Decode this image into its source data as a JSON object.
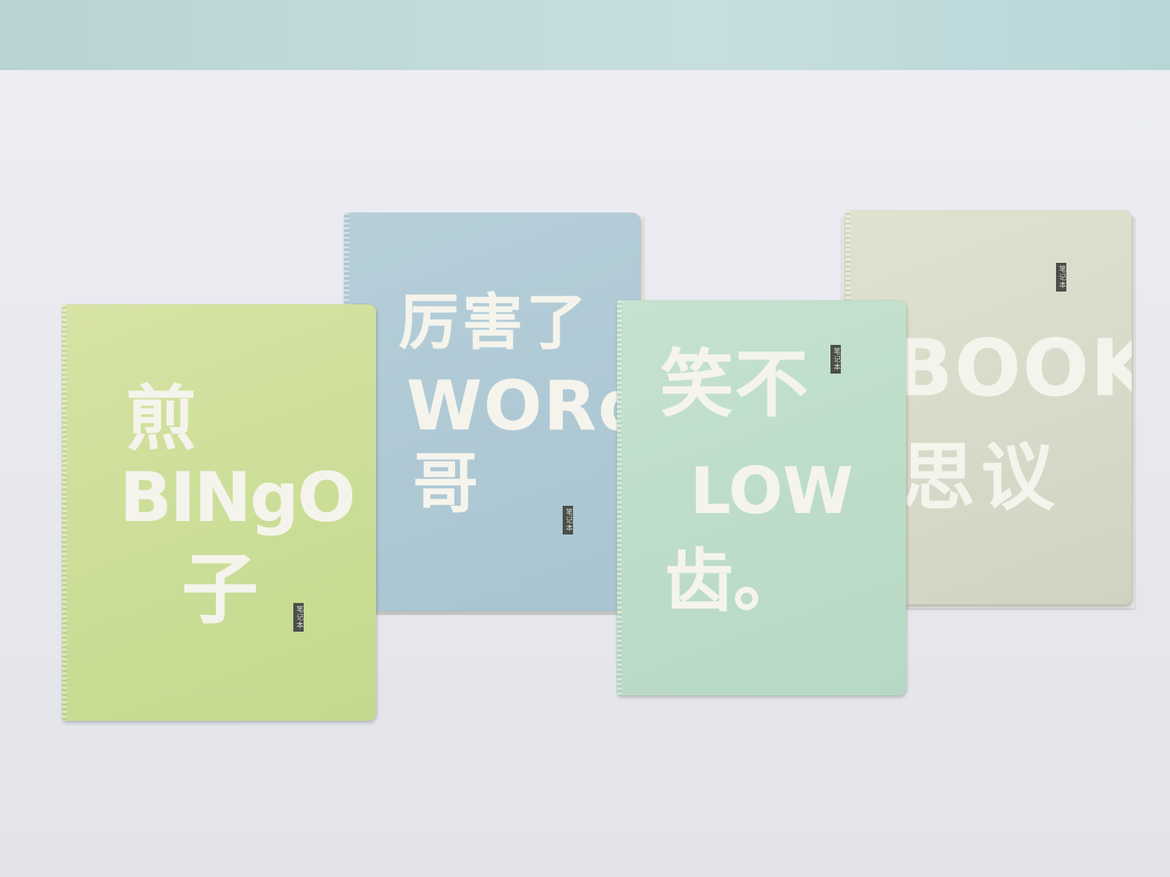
{
  "scene": {
    "colors": {
      "background_wall": "#c7dee0",
      "table_surface": "#e8e9ef",
      "cover_text": "#f5f4ec"
    }
  },
  "notebooks": [
    {
      "cover_color": "#cadd96",
      "lines": [
        "煎",
        "BINgO",
        "子"
      ],
      "tag": "笔记本"
    },
    {
      "cover_color": "#aec8d4",
      "lines": [
        "厉害了",
        "WORd",
        "哥"
      ],
      "tag": "笔记本"
    },
    {
      "cover_color": "#bcdcc8",
      "lines": [
        "笑不",
        "LOW",
        "齿。"
      ],
      "tag": "笔记本"
    },
    {
      "cover_color": "#d7dac8",
      "lines": [
        "BOOK",
        "思议"
      ],
      "tag": "笔记本"
    }
  ]
}
